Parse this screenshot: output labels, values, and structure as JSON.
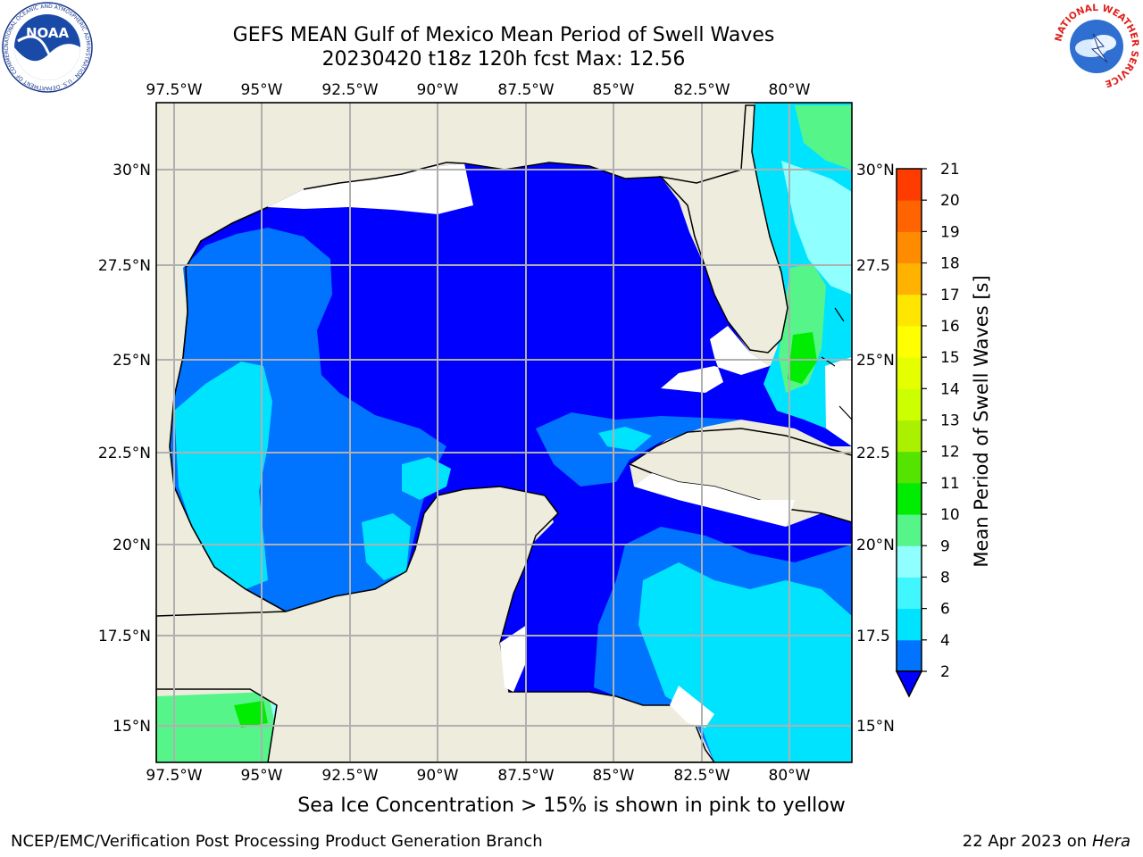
{
  "title": {
    "line1": "GEFS MEAN Gulf of Mexico Mean Period of Swell Waves",
    "line2": "20230420 t18z 120h fcst   Max: 12.56"
  },
  "logos": {
    "left": "NOAA",
    "left_ring": "NATIONAL OCEANIC AND ATMOSPHERIC ADMINISTRATION · U.S. DEPARTMENT OF COMMERCE",
    "right_ring": "NATIONAL WEATHER SERVICE"
  },
  "map": {
    "lon_labels": [
      "97.5°W",
      "95°W",
      "92.5°W",
      "90°W",
      "87.5°W",
      "85°W",
      "82.5°W",
      "80°W"
    ],
    "lat_labels_left": [
      "30°N",
      "27.5°N",
      "25°N",
      "22.5°N",
      "20°N",
      "17.5°N",
      "15°N"
    ],
    "lat_labels_right": [
      "30°N",
      "27.5",
      "25°N",
      "22.5",
      "20°N",
      "17.5",
      "15°N"
    ],
    "land_color": "#eeecdc",
    "grid_color": "#b0b0b0"
  },
  "colorbar": {
    "label": "Mean Period of Swell Waves [s]",
    "ticks": [
      "2",
      "4",
      "6",
      "8",
      "9",
      "10",
      "11",
      "12",
      "13",
      "14",
      "15",
      "16",
      "17",
      "18",
      "19",
      "20",
      "21"
    ],
    "colors": [
      "#0073ff",
      "#00e3ff",
      "#40f6ff",
      "#90ffff",
      "#55f58a",
      "#00ec00",
      "#55e300",
      "#aaf000",
      "#ccff00",
      "#e6ff00",
      "#ffff00",
      "#ffe600",
      "#ffb300",
      "#ff8c00",
      "#ff6400",
      "#ff3c00",
      "#ff0000"
    ],
    "under_color": "#0000ff"
  },
  "note": "Sea Ice Concentration > 15% is shown in pink to yellow",
  "footer": {
    "left": "NCEP/EMC/Verification Post Processing Product Generation Branch",
    "right_date": "22 Apr 2023 on",
    "right_host": "Hera"
  }
}
